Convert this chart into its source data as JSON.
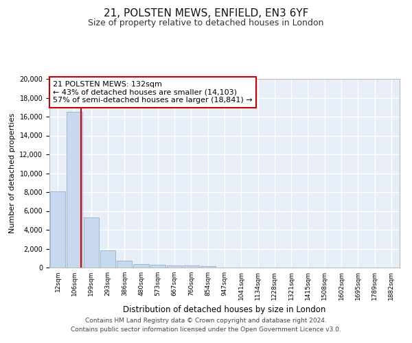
{
  "title_line1": "21, POLSTEN MEWS, ENFIELD, EN3 6YF",
  "title_line2": "Size of property relative to detached houses in London",
  "xlabel": "Distribution of detached houses by size in London",
  "ylabel": "Number of detached properties",
  "bar_labels": [
    "12sqm",
    "106sqm",
    "199sqm",
    "293sqm",
    "386sqm",
    "480sqm",
    "573sqm",
    "667sqm",
    "760sqm",
    "854sqm",
    "947sqm",
    "1041sqm",
    "1134sqm",
    "1228sqm",
    "1321sqm",
    "1415sqm",
    "1508sqm",
    "1602sqm",
    "1695sqm",
    "1789sqm",
    "1882sqm"
  ],
  "bar_values": [
    8100,
    16500,
    5300,
    1850,
    700,
    360,
    270,
    230,
    195,
    170,
    0,
    0,
    0,
    0,
    0,
    0,
    0,
    0,
    0,
    0,
    0
  ],
  "bar_color": "#c8d8ee",
  "bar_edge_color": "#7aa8d0",
  "vline_x": 1.38,
  "vline_color": "#cc0000",
  "annotation_text": "21 POLSTEN MEWS: 132sqm\n← 43% of detached houses are smaller (14,103)\n57% of semi-detached houses are larger (18,841) →",
  "annotation_box_color": "#ffffff",
  "annotation_box_edge": "#cc0000",
  "ylim": [
    0,
    20000
  ],
  "yticks": [
    0,
    2000,
    4000,
    6000,
    8000,
    10000,
    12000,
    14000,
    16000,
    18000,
    20000
  ],
  "bg_color": "#e8eef8",
  "grid_color": "#ffffff",
  "fig_bg": "#ffffff",
  "footer_line1": "Contains HM Land Registry data © Crown copyright and database right 2024.",
  "footer_line2": "Contains public sector information licensed under the Open Government Licence v3.0."
}
